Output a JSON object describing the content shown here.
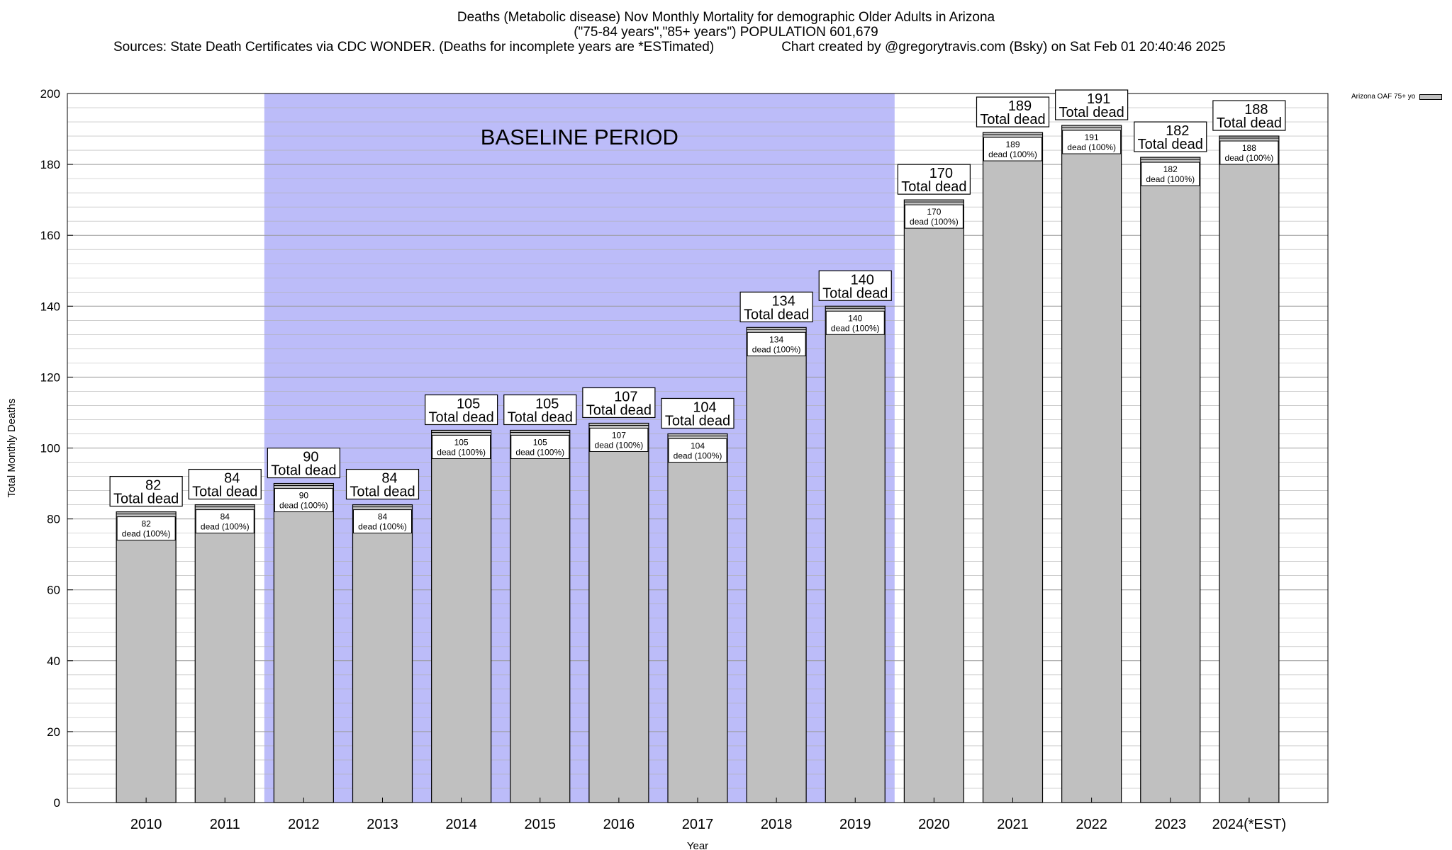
{
  "titles": {
    "line1": "Deaths (Metabolic disease) Nov Monthly Mortality for demographic Older Adults in Arizona",
    "line2": "(\"75-84 years\",\"85+ years\") POPULATION 601,679",
    "line3_left": "Sources: State Death Certificates via CDC WONDER. (Deaths for incomplete years are *ESTimated)",
    "line3_right": "Chart created by @gregorytravis.com (Bsky) on Sat Feb 01 20:40:46 2025"
  },
  "legend": {
    "label": "Arizona OAF 75+ yo"
  },
  "colors": {
    "bar": "#c0c0c0",
    "baseline": "#bcbcf9",
    "grid": "#b0b0b0"
  },
  "chart_data": {
    "type": "bar",
    "categories": [
      "2010",
      "2011",
      "2012",
      "2013",
      "2014",
      "2015",
      "2016",
      "2017",
      "2018",
      "2019",
      "2020",
      "2021",
      "2022",
      "2023",
      "2024(*EST)"
    ],
    "series": [
      {
        "name": "Arizona OAF 75+ yo",
        "values": [
          82,
          84,
          90,
          84,
          105,
          105,
          107,
          104,
          134,
          140,
          170,
          189,
          191,
          182,
          188
        ]
      }
    ],
    "xlabel": "Year",
    "ylabel": "Total Monthly Deaths",
    "ylim": [
      0,
      200
    ],
    "yticks": [
      0,
      20,
      40,
      60,
      80,
      100,
      120,
      140,
      160,
      180,
      200
    ],
    "grid": true,
    "baseline_band": {
      "label": "BASELINE PERIOD",
      "from": "2012",
      "to": "2019"
    },
    "top_label_suffix": "Total dead",
    "inner_label_suffix": "dead (100%)"
  }
}
